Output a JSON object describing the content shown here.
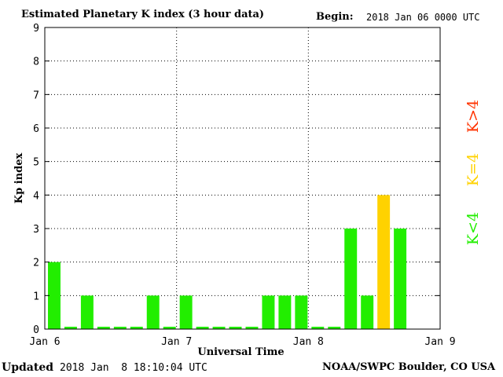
{
  "header": {
    "title": "Estimated Planetary K index (3 hour data)",
    "begin_label": "Begin:",
    "begin_value": "2018 Jan 06 0000 UTC"
  },
  "footer": {
    "updated_label": "Updated",
    "updated_value": "2018 Jan  8 18:10:04 UTC",
    "source": "NOAA/SWPC Boulder, CO USA"
  },
  "colors": {
    "low": "#22ee00",
    "moderate": "#ffd200",
    "high": "#ff3300",
    "grid": "#000000"
  },
  "chart_data": {
    "type": "bar",
    "title": "Estimated Planetary K index (3 hour data)",
    "xlabel": "Universal Time",
    "ylabel": "Kp index",
    "ylim": [
      0,
      9
    ],
    "yticks": [
      "0",
      "1",
      "2",
      "3",
      "4",
      "5",
      "6",
      "7",
      "8",
      "9"
    ],
    "xticks": [
      "Jan 6",
      "Jan 7",
      "Jan 8",
      "Jan 9"
    ],
    "bins_per_day": 8,
    "days": 3,
    "values": [
      2,
      0,
      1,
      0,
      0,
      0,
      1,
      0,
      1,
      0,
      0,
      0,
      0,
      1,
      1,
      1,
      0,
      0,
      3,
      1,
      4,
      3
    ],
    "grid": true,
    "legend": [
      {
        "label": "K<4",
        "color": "#22ee00",
        "position": "right-bottom"
      },
      {
        "label": "K=4",
        "color": "#ffd200",
        "position": "right-middle"
      },
      {
        "label": "K>4",
        "color": "#ff3300",
        "position": "right-top"
      }
    ]
  }
}
